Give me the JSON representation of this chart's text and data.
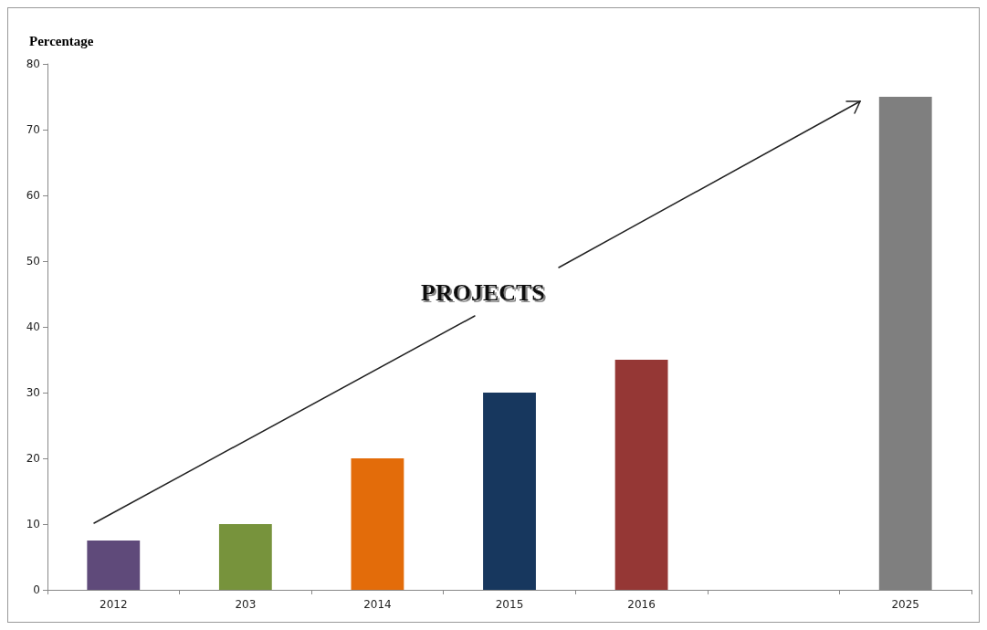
{
  "chart_data": {
    "type": "bar",
    "ylabel": "Percentage",
    "categories": [
      "2012",
      "203",
      "2014",
      "2015",
      "2016",
      null,
      "2025"
    ],
    "values": [
      7.5,
      10,
      20,
      30,
      35,
      null,
      75
    ],
    "colors": [
      "#5f4a7a",
      "#77933c",
      "#e36c0a",
      "#17375e",
      "#953735",
      "#7f7f7f",
      "#7f7f7f"
    ],
    "ylim": [
      0,
      80
    ],
    "yticks": [
      0,
      10,
      20,
      30,
      40,
      50,
      60,
      70,
      80
    ],
    "annotations": [
      "PROJECTS"
    ],
    "grid": false
  }
}
